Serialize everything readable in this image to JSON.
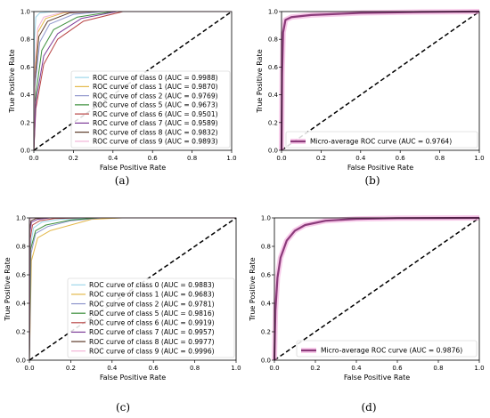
{
  "chart_data": [
    {
      "panel": "a",
      "caption": "(a)",
      "type": "line",
      "xlabel": "False Positive Rate",
      "ylabel": "True Positive Rate",
      "xlim": [
        0,
        1
      ],
      "ylim": [
        0,
        1
      ],
      "xticks": [
        "0.0",
        "0.2",
        "0.4",
        "0.6",
        "0.8",
        "1.0"
      ],
      "yticks": [
        "0.0",
        "0.2",
        "0.4",
        "0.6",
        "0.8",
        "1.0"
      ],
      "legend_position": "lower-right",
      "series": [
        {
          "name": "ROC curve of class 0 (AUC = 0.9988)",
          "color": "#9fd7ea",
          "points": [
            [
              0,
              0
            ],
            [
              0.003,
              0.8
            ],
            [
              0.01,
              0.96
            ],
            [
              0.03,
              0.99
            ],
            [
              0.1,
              1.0
            ],
            [
              1,
              1
            ]
          ]
        },
        {
          "name": "ROC curve of class 1 (AUC = 0.9870)",
          "color": "#e3b84a",
          "points": [
            [
              0,
              0
            ],
            [
              0.005,
              0.55
            ],
            [
              0.02,
              0.85
            ],
            [
              0.06,
              0.95
            ],
            [
              0.15,
              0.99
            ],
            [
              0.3,
              1.0
            ],
            [
              1,
              1
            ]
          ]
        },
        {
          "name": "ROC curve of class 2 (AUC = 0.9769)",
          "color": "#8f96cc",
          "points": [
            [
              0,
              0
            ],
            [
              0.005,
              0.45
            ],
            [
              0.03,
              0.78
            ],
            [
              0.08,
              0.91
            ],
            [
              0.2,
              0.98
            ],
            [
              0.35,
              1.0
            ],
            [
              1,
              1
            ]
          ]
        },
        {
          "name": "ROC curve of class 5 (AUC = 0.9673)",
          "color": "#3c8f3c",
          "points": [
            [
              0,
              0
            ],
            [
              0.01,
              0.4
            ],
            [
              0.04,
              0.72
            ],
            [
              0.1,
              0.87
            ],
            [
              0.22,
              0.96
            ],
            [
              0.4,
              1.0
            ],
            [
              1,
              1
            ]
          ]
        },
        {
          "name": "ROC curve of class 6 (AUC = 0.9501)",
          "color": "#b84444",
          "points": [
            [
              0,
              0
            ],
            [
              0.01,
              0.3
            ],
            [
              0.05,
              0.62
            ],
            [
              0.12,
              0.8
            ],
            [
              0.25,
              0.93
            ],
            [
              0.45,
              1.0
            ],
            [
              1,
              1
            ]
          ]
        },
        {
          "name": "ROC curve of class 7 (AUC = 0.9589)",
          "color": "#7d3c98",
          "points": [
            [
              0,
              0
            ],
            [
              0.01,
              0.35
            ],
            [
              0.05,
              0.68
            ],
            [
              0.12,
              0.84
            ],
            [
              0.24,
              0.95
            ],
            [
              0.42,
              1.0
            ],
            [
              1,
              1
            ]
          ]
        },
        {
          "name": "ROC curve of class 8 (AUC = 0.9832)",
          "color": "#5c3a2a",
          "points": [
            [
              0,
              0
            ],
            [
              0.005,
              0.5
            ],
            [
              0.025,
              0.82
            ],
            [
              0.07,
              0.93
            ],
            [
              0.18,
              0.99
            ],
            [
              0.32,
              1.0
            ],
            [
              1,
              1
            ]
          ]
        },
        {
          "name": "ROC curve of class 9 (AUC = 0.9893)",
          "color": "#f2b4d6",
          "points": [
            [
              0,
              0
            ],
            [
              0.004,
              0.6
            ],
            [
              0.02,
              0.88
            ],
            [
              0.05,
              0.96
            ],
            [
              0.15,
              0.995
            ],
            [
              0.3,
              1.0
            ],
            [
              1,
              1
            ]
          ]
        }
      ],
      "diagonal": true
    },
    {
      "panel": "b",
      "caption": "(b)",
      "type": "line",
      "xlabel": "False Positive Rate",
      "ylabel": "True Positive Rate",
      "xlim": [
        0,
        1
      ],
      "ylim": [
        0,
        1
      ],
      "xticks": [
        "0.0",
        "0.2",
        "0.4",
        "0.6",
        "0.8",
        "1.0"
      ],
      "yticks": [
        "0.0",
        "0.2",
        "0.4",
        "0.6",
        "0.8",
        "1.0"
      ],
      "legend_position": "lower-right",
      "series": [
        {
          "name": "Micro-average ROC curve (AUC = 0.9764)",
          "color": "#8b3a7a",
          "band_color": "#f4a8dc",
          "points": [
            [
              0,
              0
            ],
            [
              0.003,
              0.55
            ],
            [
              0.008,
              0.85
            ],
            [
              0.02,
              0.94
            ],
            [
              0.05,
              0.96
            ],
            [
              0.15,
              0.975
            ],
            [
              0.4,
              0.99
            ],
            [
              0.7,
              0.997
            ],
            [
              1,
              1
            ]
          ]
        }
      ],
      "diagonal": true
    },
    {
      "panel": "c",
      "caption": "(c)",
      "type": "line",
      "xlabel": "False Positive Rate",
      "ylabel": "True Positive Rate",
      "xlim": [
        0,
        1
      ],
      "ylim": [
        0,
        1
      ],
      "xticks": [
        "0.0",
        "0.2",
        "0.4",
        "0.6",
        "0.8",
        "1.0"
      ],
      "yticks": [
        "0.0",
        "0.2",
        "0.4",
        "0.6",
        "0.8",
        "1.0"
      ],
      "legend_position": "lower-right",
      "series": [
        {
          "name": "ROC curve of class 0 (AUC = 0.9883)",
          "color": "#9fd7ea",
          "points": [
            [
              0,
              0
            ],
            [
              0.005,
              0.8
            ],
            [
              0.02,
              0.93
            ],
            [
              0.06,
              0.97
            ],
            [
              0.15,
              0.99
            ],
            [
              0.3,
              1.0
            ],
            [
              1,
              1
            ]
          ]
        },
        {
          "name": "ROC curve of class 1 (AUC = 0.9683)",
          "color": "#e3b84a",
          "points": [
            [
              0,
              0
            ],
            [
              0.01,
              0.7
            ],
            [
              0.04,
              0.86
            ],
            [
              0.1,
              0.91
            ],
            [
              0.2,
              0.95
            ],
            [
              0.3,
              0.99
            ],
            [
              0.45,
              1.0
            ],
            [
              1,
              1
            ]
          ]
        },
        {
          "name": "ROC curve of class 2 (AUC = 0.9781)",
          "color": "#8f96cc",
          "points": [
            [
              0,
              0
            ],
            [
              0.008,
              0.75
            ],
            [
              0.03,
              0.89
            ],
            [
              0.09,
              0.94
            ],
            [
              0.2,
              0.98
            ],
            [
              0.35,
              1.0
            ],
            [
              1,
              1
            ]
          ]
        },
        {
          "name": "ROC curve of class 5 (AUC = 0.9816)",
          "color": "#3c8f3c",
          "points": [
            [
              0,
              0
            ],
            [
              0.006,
              0.78
            ],
            [
              0.03,
              0.91
            ],
            [
              0.08,
              0.95
            ],
            [
              0.2,
              0.985
            ],
            [
              0.33,
              1.0
            ],
            [
              1,
              1
            ]
          ]
        },
        {
          "name": "ROC curve of class 6 (AUC = 0.9919)",
          "color": "#b84444",
          "points": [
            [
              0,
              0
            ],
            [
              0.004,
              0.85
            ],
            [
              0.015,
              0.95
            ],
            [
              0.05,
              0.98
            ],
            [
              0.12,
              0.995
            ],
            [
              0.25,
              1.0
            ],
            [
              1,
              1
            ]
          ]
        },
        {
          "name": "ROC curve of class 7 (AUC = 0.9957)",
          "color": "#7d3c98",
          "points": [
            [
              0,
              0
            ],
            [
              0.003,
              0.9
            ],
            [
              0.01,
              0.97
            ],
            [
              0.04,
              0.99
            ],
            [
              0.1,
              1.0
            ],
            [
              1,
              1
            ]
          ]
        },
        {
          "name": "ROC curve of class 8 (AUC = 0.9977)",
          "color": "#5c3a2a",
          "points": [
            [
              0,
              0
            ],
            [
              0.002,
              0.93
            ],
            [
              0.008,
              0.98
            ],
            [
              0.03,
              0.995
            ],
            [
              0.08,
              1.0
            ],
            [
              1,
              1
            ]
          ]
        },
        {
          "name": "ROC curve of class 9 (AUC = 0.9996)",
          "color": "#f2b4d6",
          "points": [
            [
              0,
              0
            ],
            [
              0.001,
              0.97
            ],
            [
              0.005,
              0.995
            ],
            [
              0.02,
              1.0
            ],
            [
              1,
              1
            ]
          ]
        }
      ],
      "diagonal": true
    },
    {
      "panel": "d",
      "caption": "(d)",
      "type": "line",
      "xlabel": "False Positive Rate",
      "ylabel": "True Positive Rate",
      "xlim": [
        0,
        1
      ],
      "ylim": [
        0,
        1
      ],
      "xticks": [
        "0.0",
        "0.2",
        "0.4",
        "0.6",
        "0.8",
        "1.0"
      ],
      "yticks": [
        "0.0",
        "0.2",
        "0.4",
        "0.6",
        "0.8",
        "1.0"
      ],
      "legend_position": "lower-right",
      "series": [
        {
          "name": "Micro-average ROC curve (AUC = 0.9876)",
          "color": "#8b3a7a",
          "band_color": "#f4a8dc",
          "points": [
            [
              0,
              0
            ],
            [
              0.005,
              0.35
            ],
            [
              0.015,
              0.58
            ],
            [
              0.03,
              0.72
            ],
            [
              0.06,
              0.84
            ],
            [
              0.1,
              0.91
            ],
            [
              0.15,
              0.95
            ],
            [
              0.25,
              0.98
            ],
            [
              0.4,
              0.993
            ],
            [
              0.6,
              0.998
            ],
            [
              1,
              1
            ]
          ]
        }
      ],
      "diagonal": true
    }
  ]
}
